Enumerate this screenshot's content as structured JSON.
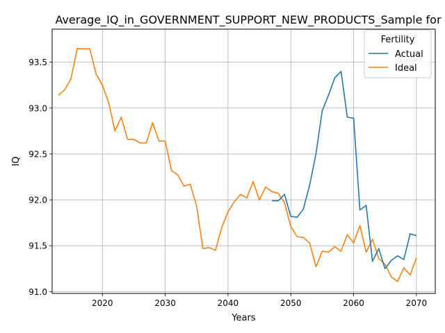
{
  "chart_data": {
    "type": "line",
    "title": "Average_IQ_in_GOVERNMENT_SUPPORT_NEW_PRODUCTS_Sample for Black_P",
    "xlabel": "Years",
    "ylabel": "IQ",
    "xlim": [
      2012,
      2073
    ],
    "ylim": [
      90.98,
      93.86
    ],
    "xticks": [
      2020,
      2030,
      2040,
      2050,
      2060,
      2070
    ],
    "yticks": [
      91.0,
      91.5,
      92.0,
      92.5,
      93.0,
      93.5
    ],
    "xtick_labels": [
      "2020",
      "2030",
      "2040",
      "2050",
      "2060",
      "2070"
    ],
    "ytick_labels": [
      "91.0",
      "91.5",
      "92.0",
      "92.5",
      "93.0",
      "93.5"
    ],
    "grid": true,
    "legend": {
      "title": "Fertility",
      "placement": "top-right"
    },
    "series": [
      {
        "name": "Actual",
        "color": "#1f77b4",
        "x": [
          2047,
          2048,
          2049,
          2050,
          2051,
          2052,
          2053,
          2054,
          2055,
          2056,
          2057,
          2058,
          2059,
          2060,
          2061,
          2062,
          2063,
          2064,
          2065,
          2066,
          2067,
          2068,
          2069,
          2070
        ],
        "values": [
          91.99,
          91.99,
          92.06,
          91.82,
          91.81,
          91.9,
          92.16,
          92.5,
          92.97,
          93.14,
          93.33,
          93.4,
          92.9,
          92.89,
          91.89,
          91.94,
          91.33,
          91.47,
          91.25,
          91.34,
          91.39,
          91.35,
          91.63,
          91.61
        ]
      },
      {
        "name": "Ideal",
        "color": "#ff7f0e",
        "x": [
          2013,
          2014,
          2015,
          2016,
          2017,
          2018,
          2019,
          2020,
          2021,
          2022,
          2023,
          2024,
          2025,
          2026,
          2027,
          2028,
          2029,
          2030,
          2031,
          2032,
          2033,
          2034,
          2035,
          2036,
          2037,
          2038,
          2039,
          2040,
          2041,
          2042,
          2043,
          2044,
          2045,
          2046,
          2047,
          2048,
          2049,
          2050,
          2051,
          2052,
          2053,
          2054,
          2055,
          2056,
          2057,
          2058,
          2059,
          2060,
          2061,
          2062,
          2063,
          2064,
          2065,
          2066,
          2067,
          2068,
          2069,
          2070
        ],
        "values": [
          93.14,
          93.2,
          93.32,
          93.65,
          93.645,
          93.645,
          93.37,
          93.25,
          93.06,
          92.75,
          92.9,
          92.66,
          92.66,
          92.62,
          92.62,
          92.84,
          92.64,
          92.64,
          92.32,
          92.27,
          92.15,
          92.17,
          91.93,
          91.47,
          91.48,
          91.45,
          91.7,
          91.87,
          91.98,
          92.06,
          92.02,
          92.2,
          92.0,
          92.14,
          92.09,
          92.07,
          91.97,
          91.71,
          91.6,
          91.59,
          91.53,
          91.27,
          91.44,
          91.43,
          91.49,
          91.44,
          91.62,
          91.53,
          91.72,
          91.43,
          91.57,
          91.36,
          91.3,
          91.16,
          91.11,
          91.26,
          91.18,
          91.37
        ]
      }
    ]
  }
}
